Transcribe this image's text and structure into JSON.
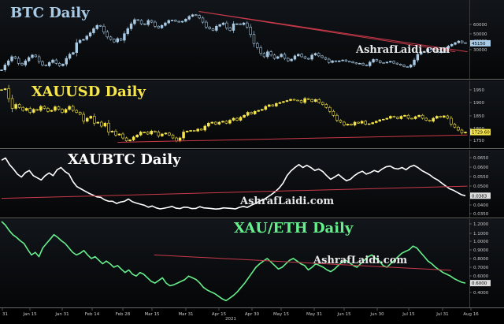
{
  "watermark": "AshrafLaidi.com",
  "colors": {
    "background": "#000000",
    "panel_bg": "#0a0d10",
    "divider": "#6a6a6a",
    "trendline": "#c93a4a",
    "btc": "#a9cbe6",
    "xauusd": "#f6e64a",
    "xaubtc": "#ffffff",
    "xaueth": "#66f08c"
  },
  "x_axis": {
    "labels": [
      "31",
      "Jan 15",
      "Jan 31",
      "Feb 14",
      "Feb 28",
      "Mar 15",
      "Mar 31",
      "Apr 15",
      "Apr 30",
      "May 15",
      "May 31",
      "Jun 15",
      "Jun 30",
      "Jul 15",
      "Jul 31",
      "Aug 16"
    ],
    "year_label": "2021"
  },
  "chart_data": [
    {
      "type": "candlestick",
      "title": "BTC Daily",
      "ylim": [
        25000,
        70000
      ],
      "y_ticks": [
        "60000",
        "50000",
        "40000",
        "30000"
      ],
      "last_value": "45150",
      "series": [
        {
          "values": [
            29000,
            32000,
            34500,
            37000,
            36000,
            33000,
            32000,
            34500,
            36500,
            38000,
            37000,
            34000,
            32000,
            31500,
            33500,
            35000,
            33000,
            31500,
            32500,
            36000,
            38500,
            39500,
            45500,
            47000,
            47500,
            49500,
            51500,
            54000,
            56000,
            55500,
            52000,
            49000,
            47500,
            46000,
            48000,
            47000,
            51000,
            54000,
            57000,
            59500,
            59000,
            57000,
            56500,
            59000,
            58000,
            55500,
            54500,
            56000,
            57500,
            59000,
            59200,
            58500,
            58000,
            58500,
            59800,
            61500,
            62500,
            62000,
            60500,
            58000,
            55000,
            54000,
            53000,
            55500,
            56500,
            57500,
            54500,
            53000,
            57000,
            57000,
            56500,
            57500,
            55000,
            50500,
            45000,
            42500,
            39000,
            37000,
            40000,
            38000,
            36000,
            37000,
            38500,
            36000,
            34500,
            35500,
            37500,
            38500,
            37000,
            36000,
            35500,
            38000,
            39000,
            37500,
            36500,
            35500,
            33500,
            34500,
            34000,
            34500,
            35000,
            34200,
            34000,
            33300,
            32700,
            33000,
            32000,
            31500,
            33700,
            35300,
            34500,
            33400,
            33200,
            33700,
            34200,
            33100,
            32500,
            31900,
            31000,
            30700,
            32000,
            35000,
            38500,
            40000,
            39800,
            41800,
            41500,
            40000,
            39500,
            40200,
            42000,
            43500,
            44500,
            45500,
            46500,
            45500,
            45150
          ]
        }
      ],
      "trendlines": [
        {
          "from_day": 97,
          "from_value": 64500,
          "to_day": 229,
          "to_value": 40000
        },
        {
          "from_day": 97,
          "from_value": 64500,
          "to_day": 223,
          "to_value": 40000
        }
      ]
    },
    {
      "type": "candlestick",
      "title": "XAUUSD Daily",
      "ylim": [
        1660,
        1980
      ],
      "y_ticks": [
        "1950",
        "1900",
        "1850",
        "1800",
        "1750",
        "1700"
      ],
      "last_value": "1729.60",
      "series": [
        {
          "values": [
            1945,
            1950,
            1900,
            1850,
            1870,
            1855,
            1840,
            1850,
            1830,
            1845,
            1840,
            1860,
            1850,
            1835,
            1840,
            1858,
            1845,
            1830,
            1845,
            1860,
            1840,
            1830,
            1820,
            1785,
            1800,
            1810,
            1775,
            1780,
            1760,
            1775,
            1730,
            1735,
            1715,
            1720,
            1700,
            1685,
            1690,
            1705,
            1715,
            1730,
            1730,
            1720,
            1735,
            1730,
            1710,
            1720,
            1725,
            1715,
            1700,
            1685,
            1700,
            1730,
            1735,
            1738,
            1735,
            1745,
            1740,
            1760,
            1775,
            1780,
            1770,
            1780,
            1785,
            1775,
            1790,
            1800,
            1790,
            1805,
            1815,
            1830,
            1822,
            1835,
            1840,
            1845,
            1860,
            1868,
            1862,
            1875,
            1880,
            1885,
            1890,
            1896,
            1892,
            1890,
            1880,
            1900,
            1895,
            1885,
            1895,
            1880,
            1870,
            1855,
            1835,
            1815,
            1790,
            1780,
            1765,
            1770,
            1765,
            1780,
            1775,
            1785,
            1770,
            1772,
            1778,
            1785,
            1792,
            1795,
            1800,
            1810,
            1805,
            1798,
            1810,
            1815,
            1800,
            1798,
            1808,
            1815,
            1800,
            1790,
            1785,
            1800,
            1810,
            1805,
            1812,
            1800,
            1770,
            1755,
            1740,
            1725,
            1729.6
          ]
        }
      ],
      "trendlines": [
        {
          "from_day": 57,
          "from_value": 1678,
          "to_day": 229,
          "to_value": 1715
        }
      ]
    },
    {
      "type": "line",
      "title": "XAUBTC Daily",
      "ylim": [
        0.025,
        0.068
      ],
      "y_ticks": [
        "0.0650",
        "0.0600",
        "0.0550",
        "0.0500",
        "0.0450",
        "0.0400",
        "0.0350",
        "0.0300"
      ],
      "last_value": "0.0383",
      "series": [
        {
          "values": [
            0.0625,
            0.064,
            0.0595,
            0.0565,
            0.053,
            0.051,
            0.054,
            0.0555,
            0.052,
            0.0505,
            0.049,
            0.052,
            0.0538,
            0.052,
            0.056,
            0.0575,
            0.0548,
            0.053,
            0.048,
            0.0445,
            0.043,
            0.0415,
            0.04,
            0.0388,
            0.0375,
            0.0372,
            0.0355,
            0.0345,
            0.0345,
            0.033,
            0.034,
            0.0345,
            0.036,
            0.0342,
            0.0333,
            0.0325,
            0.0318,
            0.0305,
            0.0313,
            0.03,
            0.0293,
            0.0298,
            0.0303,
            0.031,
            0.0298,
            0.0295,
            0.0305,
            0.0303,
            0.0295,
            0.0296,
            0.0308,
            0.03,
            0.0298,
            0.0295,
            0.0292,
            0.0294,
            0.03,
            0.0298,
            0.0296,
            0.0293,
            0.0304,
            0.031,
            0.0303,
            0.0318,
            0.033,
            0.0345,
            0.0355,
            0.0372,
            0.039,
            0.041,
            0.0435,
            0.0468,
            0.052,
            0.0552,
            0.0575,
            0.0595,
            0.0575,
            0.059,
            0.0575,
            0.0555,
            0.0565,
            0.0548,
            0.052,
            0.0495,
            0.051,
            0.0528,
            0.0505,
            0.0485,
            0.0495,
            0.052,
            0.0538,
            0.055,
            0.053,
            0.054,
            0.0555,
            0.0545,
            0.0565,
            0.058,
            0.0585,
            0.057,
            0.0565,
            0.0575,
            0.056,
            0.058,
            0.059,
            0.0575,
            0.0555,
            0.054,
            0.0525,
            0.0505,
            0.049,
            0.047,
            0.045,
            0.043,
            0.042,
            0.0405,
            0.039,
            0.0383
          ]
        }
      ],
      "trendlines": [
        {
          "from_day": 0,
          "from_value": 0.0365,
          "to_day": 229,
          "to_value": 0.0448
        }
      ]
    },
    {
      "type": "line",
      "title": "XAU/ETH Daily",
      "ylim": [
        0.35,
        1.3
      ],
      "y_ticks": [
        "1.2000",
        "1.1000",
        "1.0000",
        "0.9000",
        "0.8000",
        "0.7000",
        "0.6000",
        "0.5000",
        "0.4000"
      ],
      "last_value": "0.6000",
      "series": [
        {
          "values": [
            1.3,
            1.26,
            1.2,
            1.15,
            1.12,
            1.08,
            1.05,
            0.98,
            0.92,
            0.95,
            0.9,
            1.0,
            1.05,
            1.1,
            1.15,
            1.12,
            1.08,
            1.05,
            1.0,
            0.95,
            0.92,
            0.94,
            0.97,
            0.92,
            0.88,
            0.9,
            0.86,
            0.82,
            0.85,
            0.82,
            0.78,
            0.8,
            0.76,
            0.72,
            0.75,
            0.7,
            0.68,
            0.72,
            0.7,
            0.66,
            0.62,
            0.6,
            0.63,
            0.66,
            0.6,
            0.57,
            0.58,
            0.6,
            0.62,
            0.64,
            0.68,
            0.66,
            0.64,
            0.6,
            0.55,
            0.52,
            0.5,
            0.48,
            0.45,
            0.42,
            0.4,
            0.43,
            0.46,
            0.5,
            0.55,
            0.6,
            0.66,
            0.72,
            0.78,
            0.82,
            0.85,
            0.88,
            0.84,
            0.8,
            0.76,
            0.78,
            0.82,
            0.86,
            0.88,
            0.85,
            0.82,
            0.8,
            0.75,
            0.78,
            0.82,
            0.8,
            0.78,
            0.75,
            0.73,
            0.76,
            0.8,
            0.84,
            0.86,
            0.83,
            0.8,
            0.78,
            0.82,
            0.86,
            0.9,
            0.92,
            0.88,
            0.85,
            0.8,
            0.78,
            0.82,
            0.86,
            0.9,
            0.94,
            0.96,
            0.98,
            1.02,
            1.0,
            0.95,
            0.9,
            0.85,
            0.82,
            0.78,
            0.75,
            0.72,
            0.7,
            0.68,
            0.65,
            0.63,
            0.61,
            0.6
          ]
        }
      ],
      "trendlines": [
        {
          "from_day": 75,
          "from_value": 0.92,
          "to_day": 221,
          "to_value": 0.745
        }
      ]
    }
  ]
}
